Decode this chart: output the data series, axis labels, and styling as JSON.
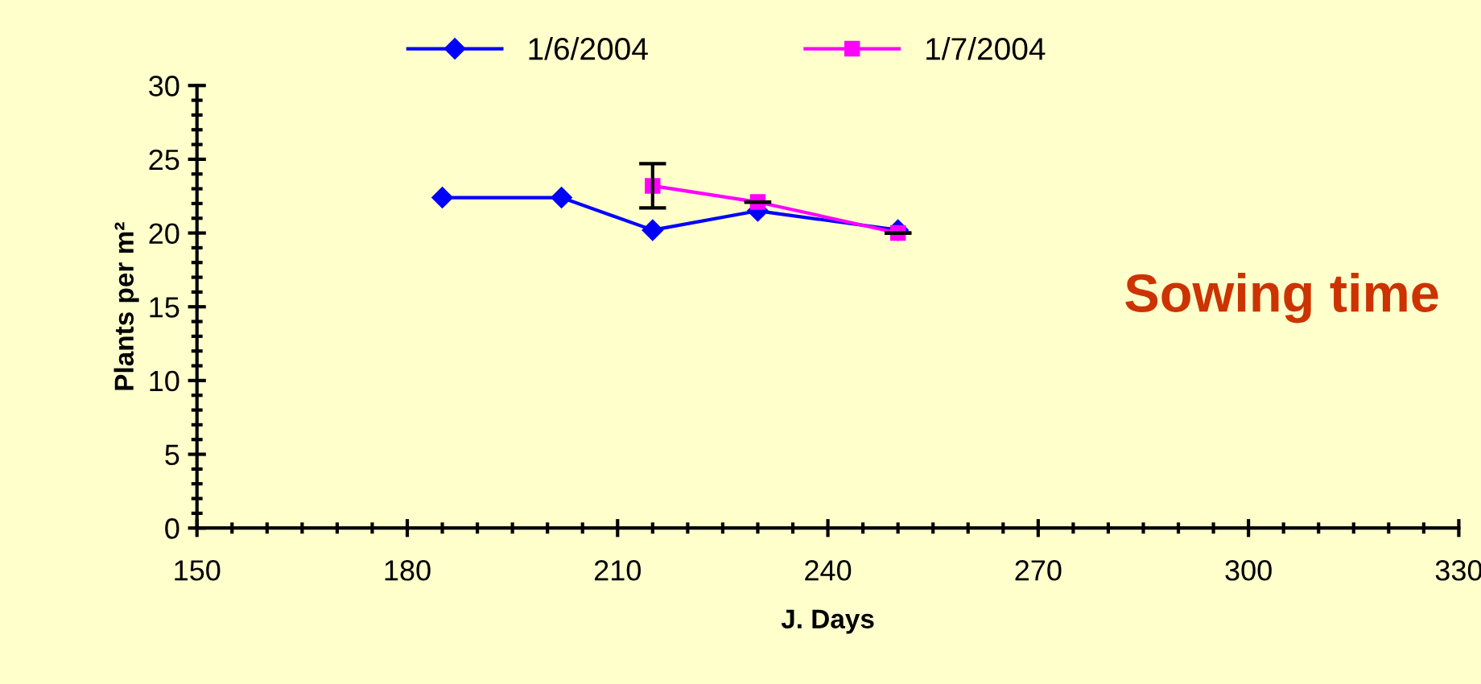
{
  "chart_data": {
    "type": "line",
    "xlabel": "J. Days",
    "ylabel": "Plants per m²",
    "xlim": [
      150,
      330
    ],
    "xticks": [
      150,
      180,
      210,
      240,
      270,
      300,
      330
    ],
    "ylim": [
      0,
      30
    ],
    "yticks": [
      0,
      5,
      10,
      15,
      20,
      25,
      30
    ],
    "legend": "top",
    "grid": false,
    "series": [
      {
        "name": "1/6/2004",
        "color": "#0000ff",
        "marker": "diamond",
        "x": [
          185,
          202,
          215,
          230,
          250
        ],
        "values": [
          22.4,
          22.4,
          20.2,
          21.5,
          20.2
        ]
      },
      {
        "name": "1/7/2004",
        "color": "#ff00ff",
        "marker": "square",
        "x": [
          215,
          230,
          250
        ],
        "values": [
          23.2,
          22.1,
          20.0
        ],
        "errors": [
          1.5,
          0,
          0
        ]
      }
    ],
    "annotations": [
      "Sowing time"
    ]
  }
}
